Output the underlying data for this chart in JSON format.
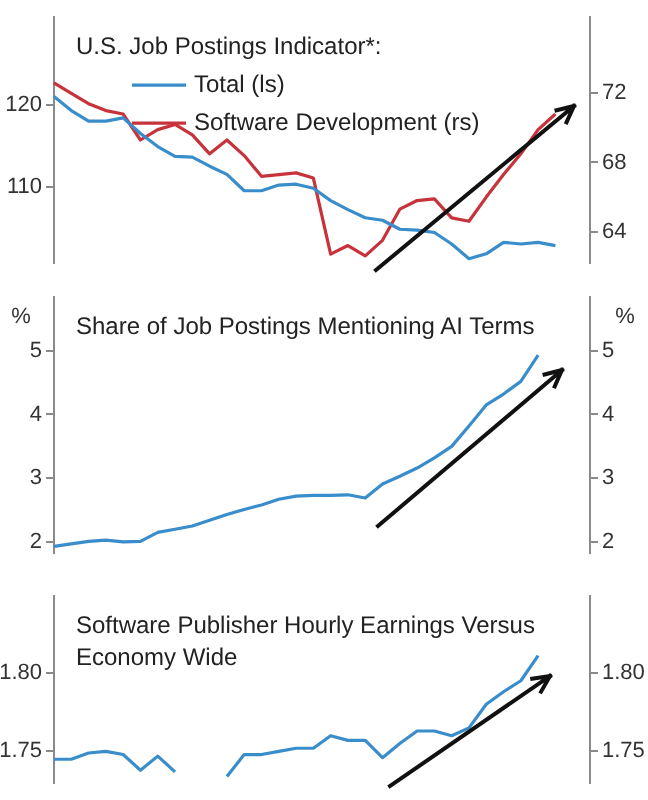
{
  "chart_data": [
    {
      "type": "line",
      "title": "U.S. Job Postings Indicator*:",
      "categories": [
        null,
        null,
        null,
        null,
        null,
        null,
        null,
        null,
        null,
        null,
        null,
        null,
        null,
        null,
        null,
        null,
        null,
        null,
        null,
        null,
        null,
        null,
        null,
        null,
        null,
        null,
        null,
        null,
        null,
        null,
        null,
        null
      ],
      "series": [
        {
          "name": "Total (ls)",
          "color": "#3a8dcb",
          "values": [
            121.0,
            119.3,
            118.0,
            118.0,
            118.4,
            116.5,
            114.9,
            113.7,
            113.6,
            112.5,
            111.5,
            109.5,
            109.5,
            110.2,
            110.3,
            109.8,
            108.3,
            107.2,
            106.2,
            105.9,
            104.8,
            104.7,
            104.4,
            103.0,
            101.2,
            101.8,
            103.2,
            103.0,
            103.2,
            102.8,
            null,
            null
          ]
        },
        {
          "name": "Software Development (rs)",
          "color": "#c8323a",
          "axis": "y2",
          "values": [
            72.6,
            72.0,
            71.4,
            71.0,
            70.8,
            69.3,
            69.9,
            70.2,
            69.6,
            68.5,
            69.3,
            68.4,
            67.2,
            67.3,
            67.4,
            67.1,
            62.7,
            63.2,
            62.6,
            63.5,
            65.3,
            65.8,
            65.9,
            64.8,
            64.6,
            66.0,
            67.3,
            68.5,
            69.9,
            70.8,
            null,
            null
          ]
        }
      ],
      "ylim": [
        100.7,
        130.7
      ],
      "yticks": [
        110,
        120
      ],
      "y2lim": [
        62.2,
        76.4
      ],
      "y2ticks": [
        64,
        68,
        72
      ],
      "legend": "top left",
      "grid": false
    },
    {
      "type": "line",
      "title": "Share of Job Postings Mentioning AI Terms",
      "ylabel": "%",
      "y2label": "%",
      "categories": [
        null,
        null,
        null,
        null,
        null,
        null,
        null,
        null,
        null,
        null,
        null,
        null,
        null,
        null,
        null,
        null,
        null,
        null,
        null,
        null,
        null,
        null,
        null,
        null,
        null,
        null,
        null,
        null,
        null,
        null,
        null,
        null
      ],
      "series": [
        {
          "color": "#3a8dcb",
          "values": [
            1.93,
            1.97,
            2.01,
            2.03,
            2.0,
            2.01,
            2.15,
            2.2,
            2.25,
            2.34,
            2.43,
            2.51,
            2.58,
            2.67,
            2.72,
            2.73,
            2.73,
            2.74,
            2.69,
            2.91,
            3.03,
            3.16,
            3.32,
            3.5,
            3.82,
            4.15,
            4.32,
            4.52,
            4.93,
            null,
            null,
            null
          ]
        }
      ],
      "ylim": [
        1.83,
        5.84
      ],
      "yticks": [
        2,
        3,
        4,
        5
      ],
      "y2lim": [
        1.83,
        5.84
      ],
      "y2ticks": [
        2,
        3,
        4,
        5
      ],
      "grid": false
    },
    {
      "type": "line",
      "title": "Software Publisher Hourly Earnings Versus Economy Wide",
      "categories": [
        null,
        null,
        null,
        null,
        null,
        null,
        null,
        null,
        null,
        null,
        null,
        null,
        null,
        null,
        null,
        null,
        null,
        null,
        null,
        null,
        null,
        null,
        null,
        null,
        null,
        null,
        null,
        null,
        null,
        null,
        null,
        null
      ],
      "series": [
        {
          "color": "#3a8dcb",
          "values": [
            1.745,
            1.745,
            1.749,
            1.75,
            1.748,
            1.738,
            1.747,
            1.737,
            null,
            null,
            1.734,
            1.748,
            1.748,
            1.75,
            1.752,
            1.752,
            1.76,
            1.757,
            1.757,
            1.746,
            1.755,
            1.763,
            1.763,
            1.76,
            1.765,
            1.78,
            1.788,
            1.795,
            1.811,
            null,
            null,
            null
          ]
        }
      ],
      "ylim": [
        1.73,
        1.849
      ],
      "yticks": [
        {
          "value": 1.75,
          "label": "1.75"
        },
        {
          "value": 1.8,
          "label": "1.80"
        }
      ],
      "y2lim": [
        1.73,
        1.849
      ],
      "y2ticks": [
        {
          "value": 1.75,
          "label": "1.75"
        },
        {
          "value": 1.8,
          "label": "1.80"
        }
      ],
      "grid": false
    }
  ]
}
